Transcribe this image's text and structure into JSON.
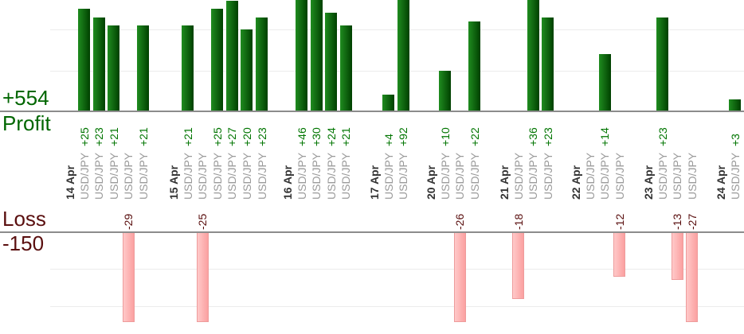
{
  "summary": {
    "profit_total": "+554",
    "profit_label": "Profit",
    "loss_label": "Loss",
    "loss_total": "-150"
  },
  "chart_data": {
    "type": "bar",
    "pair": "USD/JPY",
    "description": "Daily trade results; positive values are profit bars (green, upper pane), negative values are loss bars (pink, lower pane); zero renders no bar",
    "groups": [
      {
        "date": "14 Apr",
        "values": [
          25,
          23,
          21,
          -29,
          21
        ]
      },
      {
        "date": "15 Apr",
        "values": [
          21,
          -25,
          25,
          27,
          20,
          23
        ]
      },
      {
        "date": "16 Apr",
        "values": [
          46,
          30,
          24,
          21
        ]
      },
      {
        "date": "17 Apr",
        "values": [
          4,
          92
        ]
      },
      {
        "date": "20 Apr",
        "values": [
          10,
          -26,
          22
        ]
      },
      {
        "date": "21 Apr",
        "values": [
          -18,
          36,
          23
        ]
      },
      {
        "date": "22 Apr",
        "values": [
          0,
          14,
          -12
        ]
      },
      {
        "date": "23 Apr",
        "values": [
          23,
          -13,
          -27
        ]
      },
      {
        "date": "24 Apr",
        "values": [
          3
        ]
      }
    ],
    "profit_axis": {
      "total": 554,
      "gridline_step": 10,
      "visible_max": 27
    },
    "loss_axis": {
      "total": -150,
      "gridline_step": 10,
      "visible_min": -25
    },
    "grid": true,
    "legend": false
  },
  "colors": {
    "profit_bar_light": "#1f8c1f",
    "profit_bar_dark": "#004000",
    "profit_text": "#007500",
    "summary_green": "#006600",
    "loss_bar_light": "#ffc9c9",
    "loss_bar_dark": "#fba0a0",
    "loss_bar_border": "#ee9c9c",
    "loss_text": "#5a0f0f",
    "axis_line": "#8c8c8c",
    "gridline": "#ececec",
    "date_label": "#333333",
    "pair_label": "#9a9a9a"
  }
}
